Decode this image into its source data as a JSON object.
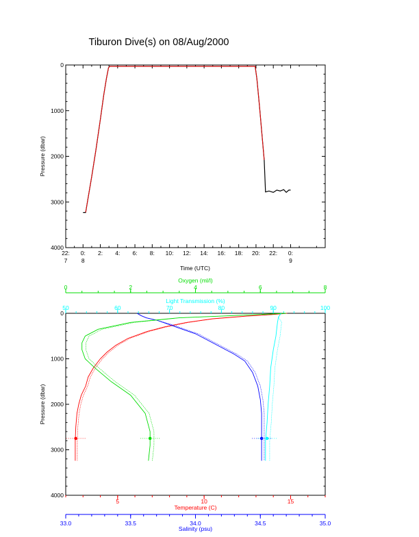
{
  "title": "Tiburon Dive(s) on 08/Aug/2000",
  "colors": {
    "axis": "#000000",
    "temperature": "#ff0000",
    "oxygen": "#00dd00",
    "light": "#00ffff",
    "salinity": "#0000ff",
    "profile": "#000000",
    "profile_overlay": "#ff0000"
  },
  "chart_data": [
    {
      "type": "line",
      "xlabel": "Time (UTC)",
      "ylabel": "Pressure (dbar)",
      "y_inverted": true,
      "ylim": [
        4000,
        0
      ],
      "xlim_hours": [
        -2,
        28
      ],
      "yticks": [
        {
          "value": 0,
          "label": "0"
        },
        {
          "value": 1000,
          "label": "1000"
        },
        {
          "value": 2000,
          "label": "2000"
        },
        {
          "value": 3000,
          "label": "3000"
        },
        {
          "value": 4000,
          "label": "4000"
        }
      ],
      "xticks": [
        {
          "value": -2,
          "label": "22:",
          "label2": "7"
        },
        {
          "value": 0,
          "label": "0:",
          "label2": "8"
        },
        {
          "value": 2,
          "label": "2:",
          "label2": ""
        },
        {
          "value": 4,
          "label": "4:",
          "label2": ""
        },
        {
          "value": 6,
          "label": "6:",
          "label2": ""
        },
        {
          "value": 8,
          "label": "8:",
          "label2": ""
        },
        {
          "value": 10,
          "label": "10:",
          "label2": ""
        },
        {
          "value": 12,
          "label": "12:",
          "label2": ""
        },
        {
          "value": 14,
          "label": "14:",
          "label2": ""
        },
        {
          "value": 16,
          "label": "16:",
          "label2": ""
        },
        {
          "value": 18,
          "label": "18:",
          "label2": ""
        },
        {
          "value": 20,
          "label": "20:",
          "label2": ""
        },
        {
          "value": 22,
          "label": "22:",
          "label2": ""
        },
        {
          "value": 24,
          "label": "0:",
          "label2": "9"
        }
      ],
      "series": [
        {
          "color": "#000000",
          "x": [
            0.0,
            0.3,
            0.6,
            1.0,
            1.5,
            2.0,
            2.4,
            2.7,
            2.95,
            3.1,
            3.3,
            19.7,
            19.9,
            20.1,
            20.4,
            20.7,
            20.95,
            21.1,
            21.5,
            22.0,
            22.4,
            22.8,
            23.2,
            23.5,
            23.8,
            24.0
          ],
          "y": [
            3230,
            3230,
            2900,
            2450,
            1850,
            1200,
            650,
            300,
            60,
            30,
            30,
            30,
            30,
            300,
            900,
            1550,
            2080,
            2780,
            2760,
            2790,
            2740,
            2760,
            2730,
            2790,
            2740,
            2740
          ]
        },
        {
          "color": "#ff0000",
          "x": [
            0.3,
            0.6,
            1.0,
            1.5,
            2.0,
            2.4,
            2.7,
            2.95,
            3.1,
            3.3,
            19.7,
            19.9,
            20.1,
            20.4,
            20.7,
            20.95
          ],
          "y": [
            3230,
            2900,
            2450,
            1850,
            1200,
            650,
            300,
            60,
            30,
            30,
            30,
            30,
            300,
            900,
            1550,
            2080
          ]
        }
      ]
    },
    {
      "type": "line",
      "ylabel": "Pressure (dbar)",
      "y_inverted": true,
      "ylim": [
        4000,
        0
      ],
      "yticks": [
        {
          "value": 0,
          "label": "0"
        },
        {
          "value": 1000,
          "label": "1000"
        },
        {
          "value": 2000,
          "label": "2000"
        },
        {
          "value": 3000,
          "label": "3000"
        },
        {
          "value": 4000,
          "label": "4000"
        }
      ],
      "axes": {
        "temperature": {
          "label": "Temperature (C)",
          "position": "bottom",
          "range": [
            2.0,
            17.0
          ],
          "ticks": [
            5,
            10,
            15
          ],
          "color": "#ff0000"
        },
        "salinity": {
          "label": "Salinity (psu)",
          "position": "bottom-2",
          "range": [
            33.0,
            35.0
          ],
          "ticks": [
            33.0,
            33.5,
            34.0,
            34.5,
            35.0
          ],
          "tick_labels": [
            "33.0",
            "33.5",
            "34.0",
            "34.5",
            "35.0"
          ],
          "color": "#0000ff"
        },
        "oxygen": {
          "label": "Oxygen (ml/l)",
          "position": "top",
          "range": [
            0,
            8
          ],
          "ticks": [
            0,
            2,
            4,
            6,
            8
          ],
          "color": "#00dd00"
        },
        "light": {
          "label": "Light Transmission (%)",
          "position": "top-2",
          "range": [
            50,
            100
          ],
          "ticks": [
            50,
            60,
            70,
            80,
            90,
            100
          ],
          "color": "#00ffff"
        }
      },
      "series": [
        {
          "axis": "temperature",
          "color": "#ff0000",
          "x": [
            14.8,
            14.0,
            12.5,
            10.5,
            9.0,
            7.7,
            6.7,
            5.6,
            4.9,
            4.4,
            4.0,
            3.6,
            3.3,
            3.15,
            2.9,
            2.75,
            2.65,
            2.58,
            2.55,
            2.55
          ],
          "y": [
            0,
            25,
            60,
            120,
            200,
            300,
            400,
            550,
            700,
            850,
            1000,
            1200,
            1400,
            1600,
            1800,
            2000,
            2200,
            2500,
            2800,
            3240
          ]
        },
        {
          "axis": "salinity",
          "color": "#0000ff",
          "x": [
            33.55,
            33.58,
            33.62,
            33.7,
            33.8,
            33.9,
            34.0,
            34.1,
            34.2,
            34.3,
            34.38,
            34.44,
            34.48,
            34.5,
            34.51,
            34.51,
            34.51
          ],
          "y": [
            0,
            50,
            100,
            150,
            250,
            350,
            450,
            600,
            750,
            900,
            1050,
            1300,
            1600,
            1900,
            2200,
            2700,
            3240
          ]
        },
        {
          "axis": "oxygen",
          "color": "#00dd00",
          "x": [
            6.8,
            5.5,
            3.5,
            2.0,
            1.0,
            0.6,
            0.5,
            0.5,
            0.6,
            0.9,
            1.4,
            2.0,
            2.45,
            2.6,
            2.6,
            2.55
          ],
          "y": [
            0,
            40,
            100,
            200,
            350,
            500,
            650,
            800,
            1000,
            1200,
            1500,
            1800,
            2200,
            2600,
            2900,
            3240
          ]
        },
        {
          "axis": "light",
          "color": "#00ffff",
          "x": [
            91.5,
            91.0,
            90.8,
            90.5,
            90.0,
            89.5,
            89.3,
            89.0,
            88.8,
            88.5,
            88.5
          ],
          "y": [
            0,
            80,
            200,
            500,
            800,
            1200,
            1600,
            2000,
            2400,
            2800,
            3240
          ]
        }
      ]
    }
  ]
}
